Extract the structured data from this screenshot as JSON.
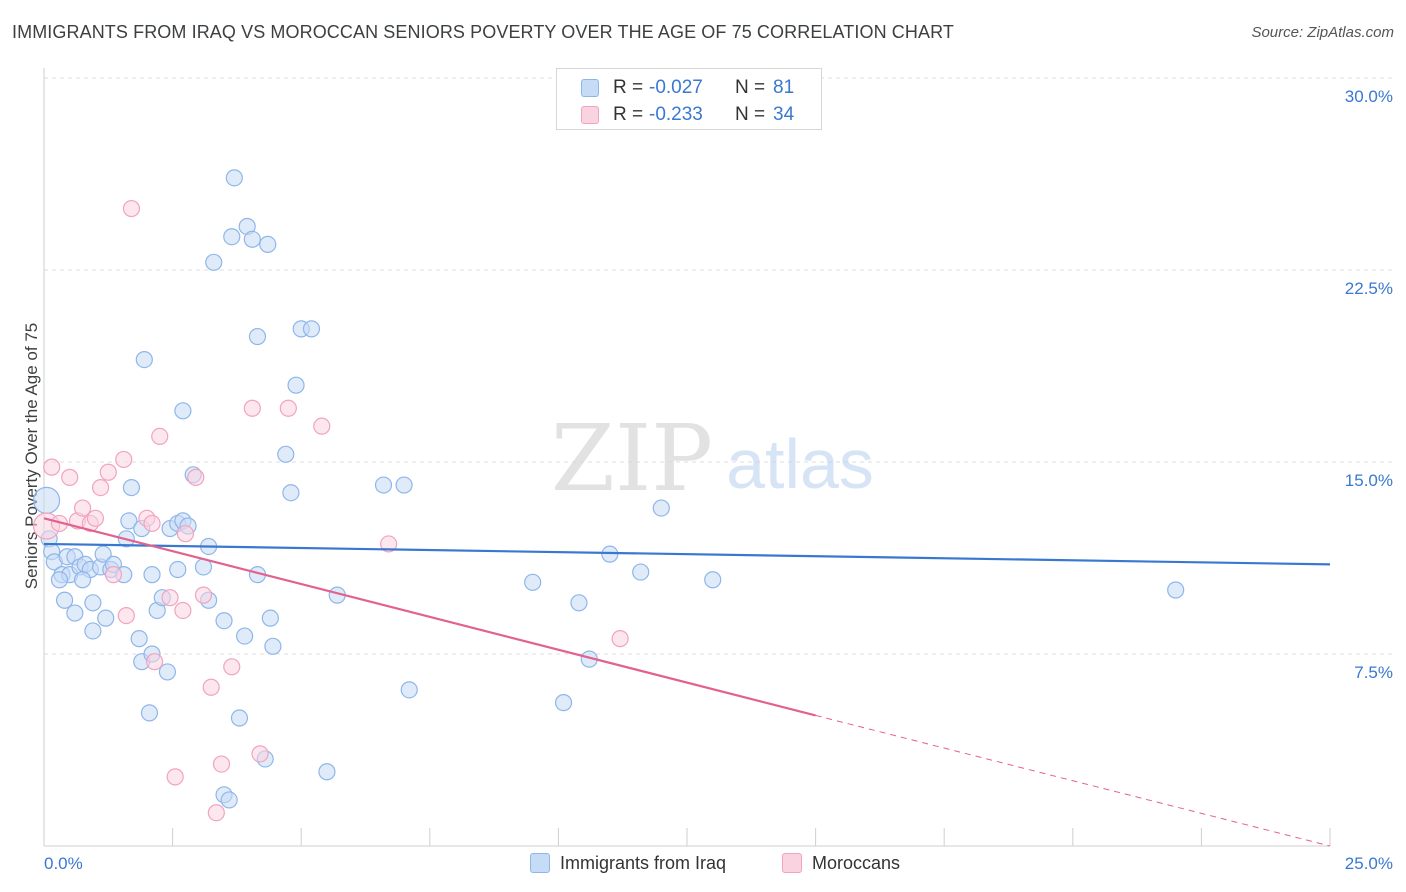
{
  "title": "IMMIGRANTS FROM IRAQ VS MOROCCAN SENIORS POVERTY OVER THE AGE OF 75 CORRELATION CHART",
  "source": "Source: ZipAtlas.com",
  "watermark": {
    "zip": "ZIP",
    "atlas": "atlas"
  },
  "stats": [
    {
      "r_label": "R =",
      "r_value": "-0.027",
      "n_label": "N =",
      "n_value": "81",
      "color": "#8fb6ea",
      "fill": "#c6dbf6"
    },
    {
      "r_label": "R =",
      "r_value": "-0.233",
      "n_label": "N =",
      "n_value": "34",
      "color": "#f2a3bd",
      "fill": "#f9d3e0"
    }
  ],
  "legend": [
    {
      "label": "Immigrants from Iraq",
      "color": "#8fb6ea",
      "fill": "#c6dbf6"
    },
    {
      "label": "Moroccans",
      "color": "#f2a3bd",
      "fill": "#f9d3e0"
    }
  ],
  "chart_data": {
    "type": "scatter",
    "title": "IMMIGRANTS FROM IRAQ VS MOROCCAN SENIORS POVERTY OVER THE AGE OF 75 CORRELATION CHART",
    "xlabel": "",
    "ylabel": "Seniors Poverty Over the Age of 75",
    "xlim": [
      0,
      25
    ],
    "ylim": [
      0,
      30
    ],
    "x_tick_labels": [
      {
        "value": 0,
        "label": "0.0%"
      },
      {
        "value": 25,
        "label": "25.0%"
      }
    ],
    "y_tick_labels": [
      {
        "value": 7.5,
        "label": "7.5%"
      },
      {
        "value": 15,
        "label": "15.0%"
      },
      {
        "value": 22.5,
        "label": "22.5%"
      },
      {
        "value": 30,
        "label": "30.0%"
      }
    ],
    "grid": true,
    "series": [
      {
        "name": "Immigrants from Iraq",
        "color": "#3a78d0",
        "point_fill": "#c6dbf6",
        "point_stroke": "#8fb6ea",
        "trend": {
          "x0": 0,
          "y0": 11.8,
          "x1": 25,
          "y1": 11.0
        },
        "points": [
          {
            "x": 0.05,
            "y": 13.5,
            "big": true
          },
          {
            "x": 0.1,
            "y": 12.0
          },
          {
            "x": 0.15,
            "y": 11.5
          },
          {
            "x": 0.2,
            "y": 11.1
          },
          {
            "x": 0.35,
            "y": 10.6
          },
          {
            "x": 0.4,
            "y": 9.6
          },
          {
            "x": 0.45,
            "y": 11.3
          },
          {
            "x": 0.5,
            "y": 10.6
          },
          {
            "x": 0.6,
            "y": 11.3
          },
          {
            "x": 0.6,
            "y": 9.1
          },
          {
            "x": 0.7,
            "y": 10.9
          },
          {
            "x": 0.8,
            "y": 11.0
          },
          {
            "x": 0.9,
            "y": 10.8
          },
          {
            "x": 0.95,
            "y": 9.5
          },
          {
            "x": 1.1,
            "y": 10.9
          },
          {
            "x": 1.15,
            "y": 11.4
          },
          {
            "x": 1.2,
            "y": 8.9
          },
          {
            "x": 1.3,
            "y": 10.8
          },
          {
            "x": 1.35,
            "y": 11.0
          },
          {
            "x": 1.55,
            "y": 10.6
          },
          {
            "x": 1.6,
            "y": 12.0
          },
          {
            "x": 1.65,
            "y": 12.7
          },
          {
            "x": 0.95,
            "y": 8.4
          },
          {
            "x": 1.7,
            "y": 14.0
          },
          {
            "x": 1.9,
            "y": 12.4
          },
          {
            "x": 1.95,
            "y": 19.0
          },
          {
            "x": 2.1,
            "y": 10.6
          },
          {
            "x": 2.2,
            "y": 9.2
          },
          {
            "x": 1.85,
            "y": 8.1
          },
          {
            "x": 1.9,
            "y": 7.2
          },
          {
            "x": 2.1,
            "y": 7.5
          },
          {
            "x": 2.3,
            "y": 9.7
          },
          {
            "x": 2.4,
            "y": 6.8
          },
          {
            "x": 2.05,
            "y": 5.2
          },
          {
            "x": 2.45,
            "y": 12.4
          },
          {
            "x": 2.6,
            "y": 12.6
          },
          {
            "x": 2.6,
            "y": 10.8
          },
          {
            "x": 2.7,
            "y": 12.7
          },
          {
            "x": 2.9,
            "y": 14.5
          },
          {
            "x": 3.1,
            "y": 10.9
          },
          {
            "x": 3.2,
            "y": 11.7
          },
          {
            "x": 2.8,
            "y": 12.5
          },
          {
            "x": 3.2,
            "y": 9.6
          },
          {
            "x": 2.7,
            "y": 17.0
          },
          {
            "x": 3.3,
            "y": 22.8
          },
          {
            "x": 3.5,
            "y": 8.8
          },
          {
            "x": 3.65,
            "y": 23.8
          },
          {
            "x": 3.7,
            "y": 26.1
          },
          {
            "x": 3.8,
            "y": 5.0
          },
          {
            "x": 3.9,
            "y": 8.2
          },
          {
            "x": 3.95,
            "y": 24.2
          },
          {
            "x": 4.05,
            "y": 23.7
          },
          {
            "x": 4.15,
            "y": 10.6
          },
          {
            "x": 4.15,
            "y": 19.9
          },
          {
            "x": 4.35,
            "y": 23.5
          },
          {
            "x": 4.4,
            "y": 8.9
          },
          {
            "x": 4.45,
            "y": 7.8
          },
          {
            "x": 4.7,
            "y": 15.3
          },
          {
            "x": 4.8,
            "y": 13.8
          },
          {
            "x": 4.9,
            "y": 18.0
          },
          {
            "x": 5.0,
            "y": 20.2
          },
          {
            "x": 5.2,
            "y": 20.2
          },
          {
            "x": 3.5,
            "y": 2.0
          },
          {
            "x": 3.6,
            "y": 1.8
          },
          {
            "x": 4.3,
            "y": 3.4
          },
          {
            "x": 5.5,
            "y": 2.9
          },
          {
            "x": 5.7,
            "y": 9.8
          },
          {
            "x": 6.6,
            "y": 14.1
          },
          {
            "x": 7.0,
            "y": 14.1
          },
          {
            "x": 7.1,
            "y": 6.1
          },
          {
            "x": 9.5,
            "y": 10.3
          },
          {
            "x": 10.1,
            "y": 5.6
          },
          {
            "x": 10.4,
            "y": 9.5
          },
          {
            "x": 10.6,
            "y": 7.3
          },
          {
            "x": 11.0,
            "y": 11.4
          },
          {
            "x": 11.6,
            "y": 10.7
          },
          {
            "x": 12.0,
            "y": 13.2
          },
          {
            "x": 13.0,
            "y": 10.4
          },
          {
            "x": 22.0,
            "y": 10.0
          },
          {
            "x": 0.3,
            "y": 10.4
          },
          {
            "x": 0.75,
            "y": 10.4
          }
        ]
      },
      {
        "name": "Moroccans",
        "color": "#e2628f",
        "point_fill": "#f9d3e0",
        "point_stroke": "#f2a3bd",
        "trend": {
          "x0": 0,
          "y0": 12.8,
          "x1": 15,
          "y1": 5.1
        },
        "trend_dashed": {
          "x0": 15,
          "y0": 5.1,
          "x1": 25,
          "y1": 0.0
        },
        "points": [
          {
            "x": 0.05,
            "y": 12.5,
            "big": true
          },
          {
            "x": 0.15,
            "y": 14.8
          },
          {
            "x": 0.3,
            "y": 12.6
          },
          {
            "x": 0.5,
            "y": 14.4
          },
          {
            "x": 0.65,
            "y": 12.7
          },
          {
            "x": 0.75,
            "y": 13.2
          },
          {
            "x": 0.9,
            "y": 12.6
          },
          {
            "x": 1.0,
            "y": 12.8
          },
          {
            "x": 1.1,
            "y": 14.0
          },
          {
            "x": 1.25,
            "y": 14.6
          },
          {
            "x": 1.35,
            "y": 10.6
          },
          {
            "x": 1.55,
            "y": 15.1
          },
          {
            "x": 1.6,
            "y": 9.0
          },
          {
            "x": 1.7,
            "y": 24.9
          },
          {
            "x": 2.0,
            "y": 12.8
          },
          {
            "x": 2.1,
            "y": 12.6
          },
          {
            "x": 2.15,
            "y": 7.2
          },
          {
            "x": 2.25,
            "y": 16.0
          },
          {
            "x": 2.45,
            "y": 9.7
          },
          {
            "x": 2.55,
            "y": 2.7
          },
          {
            "x": 2.7,
            "y": 9.2
          },
          {
            "x": 2.75,
            "y": 12.2
          },
          {
            "x": 2.95,
            "y": 14.4
          },
          {
            "x": 3.1,
            "y": 9.8
          },
          {
            "x": 3.25,
            "y": 6.2
          },
          {
            "x": 3.35,
            "y": 1.3
          },
          {
            "x": 3.45,
            "y": 3.2
          },
          {
            "x": 3.65,
            "y": 7.0
          },
          {
            "x": 4.05,
            "y": 17.1
          },
          {
            "x": 4.2,
            "y": 3.6
          },
          {
            "x": 4.75,
            "y": 17.1
          },
          {
            "x": 5.4,
            "y": 16.4
          },
          {
            "x": 6.7,
            "y": 11.8
          },
          {
            "x": 11.2,
            "y": 8.1
          }
        ]
      }
    ]
  }
}
